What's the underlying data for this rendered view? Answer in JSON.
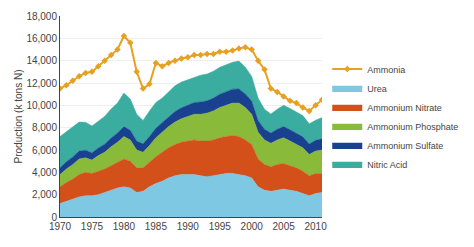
{
  "chart_data": {
    "type": "area",
    "stacked": true,
    "y_label": "Production (k tons N)",
    "x": [
      1970,
      1971,
      1972,
      1973,
      1974,
      1975,
      1976,
      1977,
      1978,
      1979,
      1980,
      1981,
      1982,
      1983,
      1984,
      1985,
      1986,
      1987,
      1988,
      1989,
      1990,
      1991,
      1992,
      1993,
      1994,
      1995,
      1996,
      1997,
      1998,
      1999,
      2000,
      2001,
      2002,
      2003,
      2004,
      2005,
      2006,
      2007,
      2008,
      2009,
      2010,
      2011
    ],
    "series": [
      {
        "name": "Urea",
        "type": "area",
        "color": "#7ec8e3",
        "values": [
          1200,
          1400,
          1600,
          1800,
          1900,
          1900,
          2000,
          2200,
          2400,
          2600,
          2700,
          2600,
          2200,
          2300,
          2700,
          3000,
          3200,
          3500,
          3700,
          3800,
          3800,
          3800,
          3700,
          3600,
          3700,
          3800,
          3900,
          3900,
          3800,
          3700,
          3500,
          2700,
          2400,
          2300,
          2400,
          2500,
          2400,
          2300,
          2100,
          1900,
          2100,
          2200
        ]
      },
      {
        "name": "Ammonium Nitrate",
        "type": "area",
        "color": "#d4501a",
        "values": [
          1500,
          1700,
          1800,
          2000,
          2100,
          2000,
          2100,
          2100,
          2200,
          2300,
          2500,
          2400,
          2200,
          2100,
          2200,
          2400,
          2600,
          2700,
          2800,
          2900,
          3000,
          3100,
          3100,
          3200,
          3200,
          3300,
          3300,
          3400,
          3400,
          3200,
          3000,
          2500,
          2300,
          2200,
          2300,
          2300,
          2200,
          2100,
          2000,
          1800,
          1800,
          1700
        ]
      },
      {
        "name": "Ammonium Phosphate",
        "type": "area",
        "color": "#8aba3a",
        "values": [
          1100,
          1200,
          1300,
          1400,
          1300,
          1200,
          1400,
          1500,
          1700,
          1800,
          2000,
          1900,
          1600,
          1400,
          1500,
          1700,
          1800,
          1900,
          2000,
          2100,
          2200,
          2300,
          2400,
          2500,
          2600,
          2700,
          2800,
          2900,
          3000,
          2900,
          2700,
          2400,
          2200,
          2100,
          2200,
          2300,
          2200,
          2100,
          2100,
          1900,
          2000,
          2100
        ]
      },
      {
        "name": "Ammonium Sulfate",
        "type": "area",
        "color": "#1a4090",
        "values": [
          600,
          650,
          680,
          700,
          680,
          650,
          680,
          720,
          780,
          820,
          900,
          860,
          800,
          750,
          800,
          850,
          860,
          900,
          950,
          980,
          1000,
          1050,
          1100,
          1100,
          1150,
          1200,
          1220,
          1250,
          1260,
          1220,
          1180,
          1050,
          950,
          920,
          960,
          1000,
          1010,
          1020,
          980,
          940,
          970,
          1000
        ]
      },
      {
        "name": "Nitric Acid",
        "type": "area",
        "color": "#3aada0",
        "values": [
          2800,
          2700,
          2700,
          2600,
          2500,
          2400,
          2400,
          2500,
          2600,
          2700,
          3000,
          2800,
          2400,
          2100,
          2300,
          2300,
          2200,
          2200,
          2300,
          2300,
          2300,
          2300,
          2400,
          2400,
          2400,
          2400,
          2400,
          2400,
          2500,
          2400,
          2200,
          2000,
          1800,
          1700,
          1800,
          1900,
          1900,
          1900,
          1900,
          1800,
          1800,
          1900
        ]
      },
      {
        "name": "Ammonia",
        "type": "line",
        "marker": "diamond",
        "color": "#e8a020",
        "values": [
          11500,
          11800,
          12200,
          12600,
          12900,
          13000,
          13500,
          14000,
          14500,
          15000,
          16200,
          15600,
          13000,
          11500,
          11900,
          13800,
          13500,
          13800,
          14000,
          14200,
          14300,
          14500,
          14500,
          14600,
          14600,
          14800,
          14800,
          14900,
          15100,
          15200,
          15000,
          14000,
          13200,
          11500,
          11200,
          10800,
          10400,
          10200,
          9800,
          9500,
          10000,
          10500
        ]
      }
    ],
    "xlim": [
      1970,
      2011
    ],
    "xticks": [
      1970,
      1975,
      1980,
      1985,
      1990,
      1995,
      2000,
      2005,
      2010
    ],
    "ylim": [
      0,
      18000
    ],
    "yticks": [
      0,
      {
        "value": 2000,
        "label": "2,000"
      },
      {
        "value": 4000,
        "label": "4,000"
      },
      {
        "value": 6000,
        "label": "6,000"
      },
      {
        "value": 8000,
        "label": "8,000"
      },
      {
        "value": 10000,
        "label": "10,000"
      },
      {
        "value": 12000,
        "label": "12,000"
      },
      {
        "value": 14000,
        "label": "14,000"
      },
      {
        "value": 16000,
        "label": "16,000"
      },
      {
        "value": 18000,
        "label": "18,000"
      }
    ],
    "grid": true,
    "legend": "right"
  }
}
